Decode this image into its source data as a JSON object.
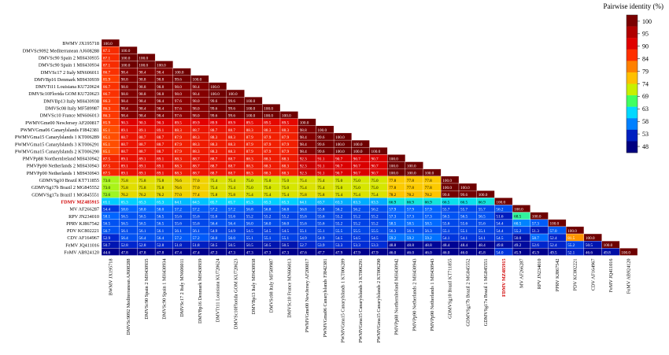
{
  "chart_data": {
    "type": "heatmap",
    "title": "",
    "legend": {
      "title": "Pairwise identity (%)",
      "placement": "top-right",
      "ticks": [
        "100",
        "95",
        "90",
        "84",
        "79",
        "74",
        "69",
        "63",
        "58",
        "53",
        "48"
      ],
      "colors": [
        "#7a0000",
        "#b00000",
        "#e00000",
        "#ff3000",
        "#ff8000",
        "#ffc000",
        "#c8f000",
        "#40ff60",
        "#00d8ff",
        "#0080ff",
        "#0020c0",
        "#000080"
      ]
    },
    "highlight_label": "FDMV MZ485915",
    "labels": [
      "BWMV JX195718",
      "DMVSc9092 Mediterranean AJ608288",
      "DMVSc90 Spain 2 MH430935",
      "DMVSc90 Spain 1 MH430934",
      "DMVSc17 2 Italy MN606011",
      "DMVBp16 Denmark MH430939",
      "DMVTt11 Louisiana KU720624",
      "DMVSc10Florida GOM KU720623",
      "DMVBp13 Italy MH430938",
      "DMVSc08 Italy MF589987",
      "DMVSc10 France MN606013",
      "PWMVGme00 NewJersey AF200817",
      "PWMVGma06 Canarylslands FJ842381",
      "PWMVGma15 Canarylslands 1 KT006289",
      "PWMVGma15 Canarylslands 3 KT006291",
      "PWMVGma15 Canarylslands 2 KT006290",
      "PMVPp88 Northernlreland MH430942",
      "PMVPp90 Netherlands 2 MH430943",
      "PMVPp90 Netherlands 1 MH430943",
      "GDMVSg10 Brazil KT711855",
      "GDMVSg17b Brazil 2 MG845552",
      "GDMVSg17a Brazil 1 MG845551",
      "FDMV MZ485915",
      "MV AF266287",
      "RPV JN234010",
      "PPRV KJ867542",
      "PDV KC802221",
      "CDV AF164967",
      "FeMV JQ411016",
      "FoMV AB924120"
    ],
    "rows": [
      [
        100.0
      ],
      [
        87.1,
        100.0
      ],
      [
        87.1,
        100.0,
        100.0
      ],
      [
        87.1,
        100.0,
        100.0,
        100.0
      ],
      [
        86.7,
        98.4,
        98.4,
        98.4,
        100.0
      ],
      [
        85.9,
        98.8,
        98.8,
        98.8,
        99.6,
        100.0
      ],
      [
        86.7,
        98.8,
        98.8,
        98.8,
        98.0,
        98.4,
        100.0
      ],
      [
        86.7,
        98.8,
        98.8,
        98.8,
        98.0,
        98.4,
        100.0,
        100.0
      ],
      [
        86.3,
        98.4,
        98.4,
        98.4,
        97.6,
        98.0,
        99.6,
        99.6,
        100.0
      ],
      [
        86.3,
        98.4,
        98.4,
        98.4,
        97.6,
        98.0,
        99.6,
        99.6,
        100.0,
        100.0
      ],
      [
        86.3,
        98.4,
        98.4,
        98.4,
        97.6,
        98.0,
        99.6,
        99.6,
        100.0,
        100.0,
        100.0
      ],
      [
        85.9,
        90.3,
        90.3,
        90.3,
        89.5,
        89.9,
        89.9,
        89.9,
        89.5,
        89.5,
        89.5,
        100.0
      ],
      [
        85.1,
        89.1,
        89.1,
        89.1,
        88.3,
        88.7,
        88.7,
        88.7,
        88.3,
        88.3,
        88.3,
        98.8,
        100.0
      ],
      [
        85.1,
        88.7,
        88.7,
        88.7,
        87.9,
        88.3,
        88.3,
        88.3,
        87.9,
        87.9,
        87.9,
        98.4,
        99.6,
        100.0
      ],
      [
        85.1,
        88.7,
        88.7,
        88.7,
        87.9,
        88.3,
        88.3,
        88.3,
        87.9,
        87.9,
        87.9,
        98.4,
        99.6,
        100.0,
        100.0
      ],
      [
        85.1,
        88.7,
        88.7,
        88.7,
        87.9,
        88.3,
        88.3,
        88.3,
        87.9,
        87.9,
        87.9,
        98.4,
        99.6,
        100.0,
        100.0,
        100.0
      ],
      [
        87.5,
        89.1,
        89.1,
        89.1,
        88.3,
        88.7,
        88.7,
        88.7,
        88.3,
        88.3,
        88.3,
        92.3,
        91.1,
        90.7,
        90.7,
        90.7,
        100.0
      ],
      [
        87.5,
        89.1,
        89.1,
        89.1,
        88.3,
        88.7,
        88.7,
        88.7,
        88.3,
        88.3,
        88.3,
        92.3,
        91.1,
        90.7,
        90.7,
        90.7,
        100.0,
        100.0
      ],
      [
        87.5,
        89.1,
        89.1,
        89.1,
        88.3,
        88.7,
        88.7,
        88.7,
        88.3,
        88.3,
        88.3,
        92.3,
        91.1,
        90.7,
        90.7,
        90.7,
        100.0,
        100.0,
        100.0
      ],
      [
        73.0,
        75.8,
        75.8,
        75.8,
        76.6,
        77.0,
        75.4,
        75.4,
        75.0,
        75.0,
        75.0,
        75.4,
        75.4,
        75.0,
        75.0,
        75.0,
        77.8,
        77.8,
        77.8,
        100.0
      ],
      [
        73.0,
        75.8,
        75.8,
        75.8,
        76.6,
        77.0,
        75.4,
        75.4,
        75.0,
        75.0,
        75.0,
        75.4,
        75.4,
        75.0,
        75.0,
        75.0,
        77.8,
        77.8,
        77.8,
        100.0,
        100.0
      ],
      [
        72.6,
        76.2,
        76.2,
        76.2,
        77.0,
        77.4,
        75.8,
        75.8,
        75.4,
        75.4,
        75.4,
        75.8,
        75.8,
        75.4,
        75.4,
        75.4,
        78.2,
        78.2,
        78.2,
        99.6,
        99.6,
        100.0
      ],
      [
        65.1,
        65.3,
        65.3,
        65.3,
        64.1,
        64.5,
        65.7,
        65.7,
        65.3,
        65.3,
        65.3,
        64.1,
        63.7,
        63.3,
        63.3,
        63.3,
        66.9,
        66.9,
        66.9,
        66.5,
        66.5,
        66.9,
        100.0
      ],
      [
        54.4,
        58.0,
        58.0,
        58.0,
        57.2,
        57.2,
        57.2,
        57.2,
        56.8,
        56.8,
        56.8,
        56.8,
        55.8,
        56.2,
        56.2,
        56.2,
        57.9,
        57.9,
        57.9,
        55.7,
        55.7,
        55.7,
        56.2,
        100.0
      ],
      [
        58.1,
        56.5,
        56.5,
        56.5,
        55.6,
        55.6,
        55.6,
        55.6,
        55.2,
        55.2,
        55.2,
        55.6,
        55.6,
        55.2,
        55.2,
        55.2,
        57.3,
        57.3,
        57.3,
        56.5,
        56.5,
        56.5,
        51.6,
        68.5,
        100.0
      ],
      [
        56.5,
        56.5,
        56.5,
        56.5,
        55.6,
        55.6,
        56.4,
        56.4,
        56.0,
        56.0,
        56.0,
        55.6,
        55.6,
        55.2,
        55.2,
        55.2,
        58.5,
        58.5,
        58.5,
        55.6,
        55.6,
        55.6,
        54.4,
        60.5,
        57.3,
        100.0
      ],
      [
        56.7,
        56.1,
        56.1,
        56.1,
        56.1,
        56.1,
        54.9,
        54.9,
        54.5,
        54.5,
        54.5,
        55.1,
        55.1,
        55.5,
        55.5,
        55.5,
        56.3,
        56.3,
        56.3,
        55.1,
        55.1,
        55.1,
        54.4,
        55.2,
        51.3,
        57.0,
        100.0
      ],
      [
        52.9,
        56.4,
        56.4,
        56.4,
        57.2,
        57.2,
        56.0,
        56.0,
        55.1,
        55.1,
        55.1,
        54.9,
        54.9,
        54.5,
        54.5,
        54.5,
        59.2,
        59.2,
        59.2,
        54.1,
        54.1,
        54.1,
        54.5,
        50.0,
        58.7,
        52.4,
        81.5,
        100.0
      ],
      [
        50.7,
        52.8,
        52.8,
        52.8,
        51.8,
        51.8,
        50.5,
        50.5,
        50.5,
        50.5,
        50.5,
        52.7,
        53.9,
        53.3,
        53.3,
        53.3,
        48.8,
        48.8,
        48.8,
        48.4,
        48.4,
        48.4,
        49.8,
        49.2,
        52.6,
        52.4,
        55.2,
        50.5,
        100.0
      ],
      [
        44.6,
        47.8,
        47.8,
        47.8,
        47.4,
        47.4,
        47.3,
        47.3,
        47.3,
        47.3,
        47.3,
        47.6,
        47.7,
        47.9,
        47.9,
        47.9,
        46.0,
        46.0,
        46.0,
        46.0,
        46.0,
        45.8,
        54.0,
        45.9,
        45.9,
        49.5,
        52.1,
        46.6,
        49.8,
        100.0
      ]
    ]
  }
}
